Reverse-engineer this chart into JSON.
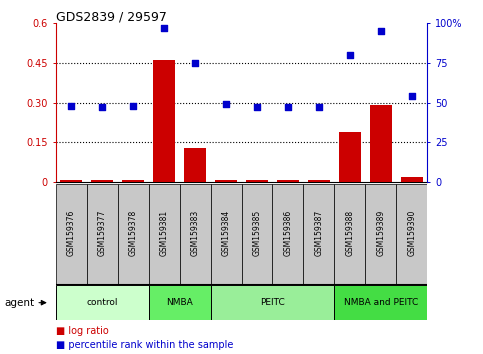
{
  "title": "GDS2839 / 29597",
  "samples": [
    "GSM159376",
    "GSM159377",
    "GSM159378",
    "GSM159381",
    "GSM159383",
    "GSM159384",
    "GSM159385",
    "GSM159386",
    "GSM159387",
    "GSM159388",
    "GSM159389",
    "GSM159390"
  ],
  "log_ratio": [
    0.01,
    0.01,
    0.01,
    0.46,
    0.13,
    0.01,
    0.01,
    0.01,
    0.01,
    0.19,
    0.29,
    0.02
  ],
  "percentile_rank": [
    48,
    47,
    48,
    97,
    75,
    49,
    47,
    47,
    47,
    80,
    95,
    54
  ],
  "groups": [
    {
      "label": "control",
      "start": 0,
      "end": 3,
      "color": "#ccffcc"
    },
    {
      "label": "NMBA",
      "start": 3,
      "end": 5,
      "color": "#66ee66"
    },
    {
      "label": "PEITC",
      "start": 5,
      "end": 9,
      "color": "#99ee99"
    },
    {
      "label": "NMBA and PEITC",
      "start": 9,
      "end": 12,
      "color": "#44dd44"
    }
  ],
  "bar_color": "#cc0000",
  "dot_color": "#0000cc",
  "ylim_left": [
    0,
    0.6
  ],
  "ylim_right": [
    0,
    100
  ],
  "yticks_left": [
    0,
    0.15,
    0.3,
    0.45,
    0.6
  ],
  "yticks_right": [
    0,
    25,
    50,
    75,
    100
  ],
  "ytick_labels_left": [
    "0",
    "0.15",
    "0.30",
    "0.45",
    "0.6"
  ],
  "ytick_labels_right": [
    "0",
    "25",
    "50",
    "75",
    "100%"
  ],
  "hline_values": [
    0.15,
    0.3,
    0.45
  ],
  "legend_log_ratio": "log ratio",
  "legend_percentile": "percentile rank within the sample",
  "agent_label": "agent",
  "tick_label_color_left": "#cc0000",
  "tick_label_color_right": "#0000cc",
  "sample_box_color": "#c8c8c8",
  "group_colors": [
    "#ccffcc",
    "#66ee66",
    "#99ee99",
    "#44dd44"
  ]
}
